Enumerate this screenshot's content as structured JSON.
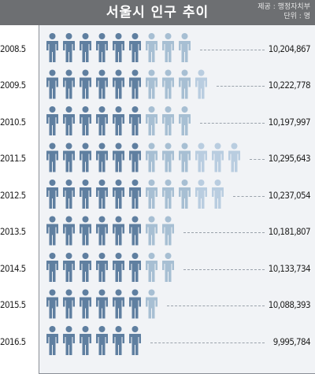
{
  "title": "서울시 인구 추이",
  "source_line": "제공 : 행정자치부",
  "unit_line": "단위 : 명",
  "colors": {
    "header_bg": "#6d6f72",
    "icon_dark": "#5f7fa0",
    "icon_light": "#a7bfd3",
    "plot_bg": "#f1f3f6"
  },
  "chart_data": {
    "type": "bar",
    "title": "서울시 인구 추이",
    "unit": "단위 : 명",
    "categories": [
      "2008.5",
      "2009.5",
      "2010.5",
      "2011.5",
      "2012.5",
      "2013.5",
      "2014.5",
      "2015.5",
      "2016.5"
    ],
    "values": [
      10204867,
      10222778,
      10197997,
      10295643,
      10237054,
      10181807,
      10133734,
      10088393,
      9995784
    ],
    "value_labels": [
      "10,204,867",
      "10,222,778",
      "10,197,997",
      "10,295,643",
      "10,237,054",
      "10,181,807",
      "10,133,734",
      "10,088,393",
      "9,995,784"
    ],
    "icon_counts": [
      9,
      10,
      9,
      12,
      11,
      8,
      8,
      7,
      6
    ],
    "icon": "person-icon"
  }
}
